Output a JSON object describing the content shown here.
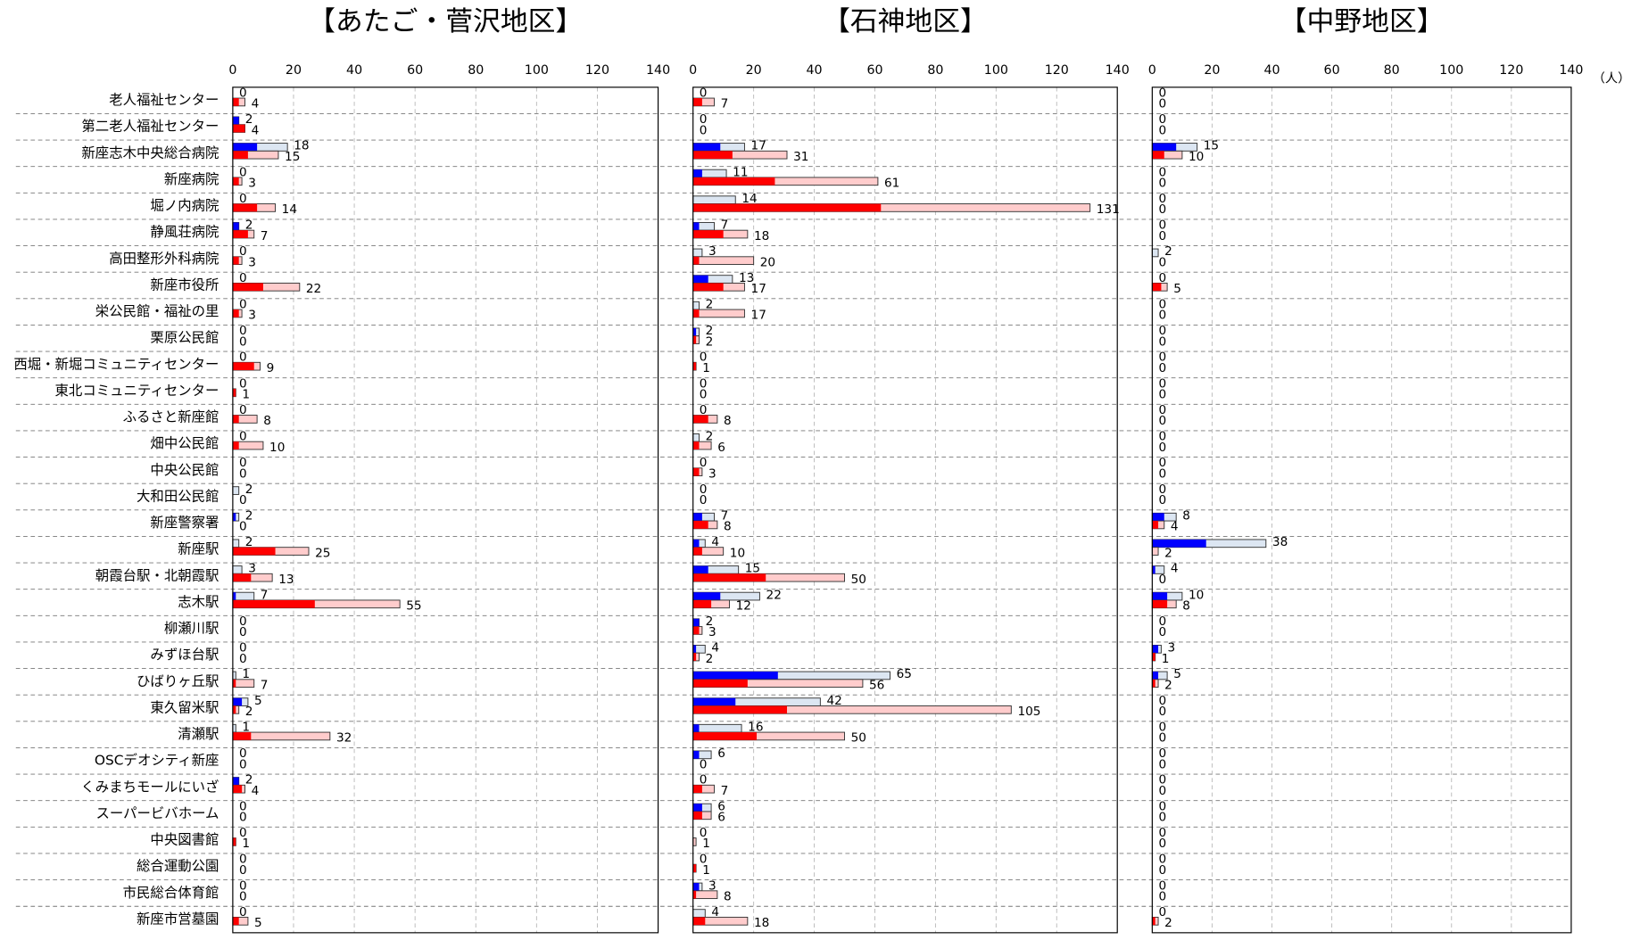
{
  "unit": "（人）",
  "categories": [
    "老人福祉センター",
    "第二老人福祉センター",
    "新座志木中央総合病院",
    "新座病院",
    "堀ノ内病院",
    "静風荘病院",
    "高田整形外科病院",
    "新座市役所",
    "栄公民館・福祉の里",
    "栗原公民館",
    "西堀・新堀コミュニティセンター",
    "東北コミュニティセンター",
    "ふるさと新座館",
    "畑中公民館",
    "中央公民館",
    "大和田公民館",
    "新座警察署",
    "新座駅",
    "朝霞台駅・北朝霞駅",
    "志木駅",
    "柳瀬川駅",
    "みずほ台駅",
    "ひばりヶ丘駅",
    "東久留米駅",
    "清瀬駅",
    "OSCデオシティ新座",
    "くみまちモールにいざ",
    "スーパービバホーム",
    "中央図書館",
    "総合運動公園",
    "市民総合体育館",
    "新座市営墓園"
  ],
  "chart_data": [
    {
      "type": "bar",
      "orientation": "horizontal",
      "title": "【あたご・菅沢地区】",
      "xlim": [
        0,
        140
      ],
      "xticks": [
        0,
        20,
        40,
        60,
        80,
        100,
        120,
        140
      ],
      "grid": true,
      "series": [
        {
          "color": "#dce6f2",
          "values": [
            0,
            2,
            18,
            0,
            0,
            2,
            0,
            0,
            0,
            0,
            0,
            0,
            0,
            0,
            0,
            2,
            2,
            2,
            3,
            7,
            0,
            0,
            1,
            5,
            1,
            0,
            2,
            0,
            0,
            0,
            0,
            0
          ]
        },
        {
          "color": "#0000ff",
          "values": [
            0,
            2,
            8,
            0,
            0,
            2,
            0,
            0,
            0,
            0,
            0,
            0,
            0,
            0,
            0,
            0,
            1,
            0,
            0,
            1,
            0,
            0,
            0,
            3,
            0,
            0,
            2,
            0,
            0,
            0,
            0,
            0
          ]
        },
        {
          "color": "#ffcccc",
          "values": [
            4,
            4,
            15,
            3,
            14,
            7,
            3,
            22,
            3,
            0,
            9,
            1,
            8,
            10,
            0,
            0,
            0,
            25,
            13,
            55,
            0,
            0,
            7,
            2,
            32,
            0,
            4,
            0,
            1,
            0,
            0,
            5
          ]
        },
        {
          "color": "#ff0000",
          "values": [
            2,
            4,
            5,
            2,
            8,
            5,
            2,
            10,
            2,
            0,
            7,
            1,
            2,
            2,
            0,
            0,
            0,
            14,
            6,
            27,
            0,
            0,
            1,
            1,
            6,
            0,
            3,
            0,
            1,
            0,
            0,
            2
          ]
        }
      ]
    },
    {
      "type": "bar",
      "orientation": "horizontal",
      "title": "【石神地区】",
      "xlim": [
        0,
        140
      ],
      "xticks": [
        0,
        20,
        40,
        60,
        80,
        100,
        120,
        140
      ],
      "grid": true,
      "series": [
        {
          "color": "#dce6f2",
          "values": [
            0,
            0,
            17,
            11,
            14,
            7,
            3,
            13,
            2,
            2,
            0,
            0,
            0,
            2,
            0,
            0,
            7,
            4,
            15,
            22,
            2,
            4,
            65,
            42,
            16,
            6,
            0,
            6,
            0,
            0,
            3,
            4
          ]
        },
        {
          "color": "#0000ff",
          "values": [
            0,
            0,
            9,
            3,
            0,
            2,
            0,
            5,
            0,
            1,
            0,
            0,
            0,
            0,
            0,
            0,
            3,
            2,
            5,
            9,
            2,
            1,
            28,
            14,
            2,
            2,
            0,
            3,
            0,
            0,
            2,
            0
          ]
        },
        {
          "color": "#ffcccc",
          "values": [
            7,
            0,
            31,
            61,
            131,
            18,
            20,
            17,
            17,
            2,
            1,
            0,
            8,
            6,
            3,
            0,
            8,
            10,
            50,
            12,
            3,
            2,
            56,
            105,
            50,
            0,
            7,
            6,
            1,
            1,
            8,
            18
          ]
        },
        {
          "color": "#ff0000",
          "values": [
            3,
            0,
            13,
            27,
            62,
            10,
            2,
            10,
            2,
            1,
            1,
            0,
            5,
            2,
            2,
            0,
            5,
            3,
            24,
            6,
            2,
            1,
            18,
            31,
            21,
            0,
            3,
            3,
            0,
            1,
            1,
            4
          ]
        }
      ]
    },
    {
      "type": "bar",
      "orientation": "horizontal",
      "title": "【中野地区】",
      "xlim": [
        0,
        140
      ],
      "xticks": [
        0,
        20,
        40,
        60,
        80,
        100,
        120,
        140
      ],
      "grid": true,
      "series": [
        {
          "color": "#dce6f2",
          "values": [
            0,
            0,
            15,
            0,
            0,
            0,
            2,
            0,
            0,
            0,
            0,
            0,
            0,
            0,
            0,
            0,
            8,
            38,
            4,
            10,
            0,
            3,
            5,
            0,
            0,
            0,
            0,
            0,
            0,
            0,
            0,
            0
          ]
        },
        {
          "color": "#0000ff",
          "values": [
            0,
            0,
            8,
            0,
            0,
            0,
            0,
            0,
            0,
            0,
            0,
            0,
            0,
            0,
            0,
            0,
            4,
            18,
            1,
            5,
            0,
            2,
            2,
            0,
            0,
            0,
            0,
            0,
            0,
            0,
            0,
            0
          ]
        },
        {
          "color": "#ffcccc",
          "values": [
            0,
            0,
            10,
            0,
            0,
            0,
            0,
            5,
            0,
            0,
            0,
            0,
            0,
            0,
            0,
            0,
            4,
            2,
            0,
            8,
            0,
            1,
            2,
            0,
            0,
            0,
            0,
            0,
            0,
            0,
            0,
            2
          ]
        },
        {
          "color": "#ff0000",
          "values": [
            0,
            0,
            4,
            0,
            0,
            0,
            0,
            3,
            0,
            0,
            0,
            0,
            0,
            0,
            0,
            0,
            2,
            0,
            0,
            5,
            0,
            1,
            1,
            0,
            0,
            0,
            0,
            0,
            0,
            0,
            0,
            1
          ]
        }
      ]
    }
  ]
}
